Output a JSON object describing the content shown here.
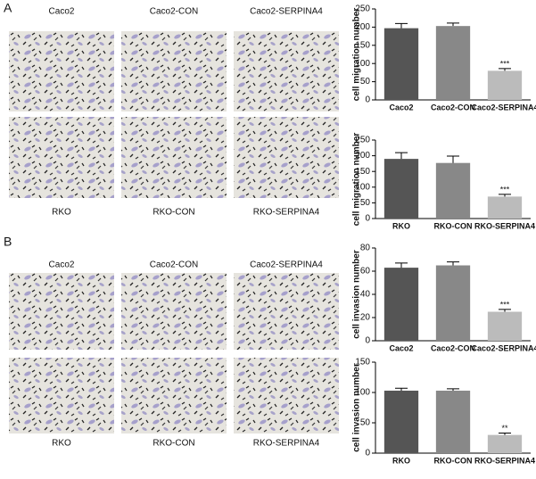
{
  "panel_labels": [
    "A",
    "B"
  ],
  "image_labels": [
    [
      "Caco2",
      "Caco2-CON",
      "Caco2-SERPINA4"
    ],
    [
      "RKO",
      "RKO-CON",
      "RKO-SERPINA4"
    ],
    [
      "Caco2",
      "Caco2-CON",
      "Caco2-SERPINA4"
    ],
    [
      "RKO",
      "RKO-CON",
      "RKO-SERPINA4"
    ]
  ],
  "chart_data": [
    {
      "type": "bar",
      "y_label": "cell migration number",
      "categories": [
        "Caco2",
        "Caco2-CON",
        "Caco2-SERPINA4"
      ],
      "values": [
        197,
        203,
        80
      ],
      "errors": [
        13,
        8,
        6
      ],
      "colors": [
        "#555555",
        "#888888",
        "#bbbbbb"
      ],
      "ylim": [
        0,
        250
      ],
      "yticks": [
        0,
        50,
        100,
        150,
        200,
        250
      ],
      "annotation": "***"
    },
    {
      "type": "bar",
      "y_label": "cell migration number",
      "categories": [
        "RKO",
        "RKO-CON",
        "RKO-SERPINA4"
      ],
      "values": [
        190,
        177,
        70
      ],
      "errors": [
        20,
        22,
        7
      ],
      "colors": [
        "#555555",
        "#888888",
        "#bbbbbb"
      ],
      "ylim": [
        0,
        250
      ],
      "yticks": [
        0,
        50,
        100,
        150,
        200,
        250
      ],
      "annotation": "***"
    },
    {
      "type": "bar",
      "y_label": "cell invasion number",
      "categories": [
        "Caco2",
        "Caco2-CON",
        "Caco2-SERPINA4"
      ],
      "values": [
        63,
        65,
        25
      ],
      "errors": [
        4,
        3,
        2
      ],
      "colors": [
        "#555555",
        "#888888",
        "#bbbbbb"
      ],
      "ylim": [
        0,
        80
      ],
      "yticks": [
        0,
        20,
        40,
        60,
        80
      ],
      "annotation": "***"
    },
    {
      "type": "bar",
      "y_label": "cell invasion number",
      "categories": [
        "RKO",
        "RKO-CON",
        "RKO-SERPINA4"
      ],
      "values": [
        103,
        103,
        30
      ],
      "errors": [
        4,
        3,
        3
      ],
      "colors": [
        "#555555",
        "#888888",
        "#bbbbbb"
      ],
      "ylim": [
        0,
        150
      ],
      "yticks": [
        0,
        50,
        100,
        150
      ],
      "annotation": "**"
    }
  ]
}
